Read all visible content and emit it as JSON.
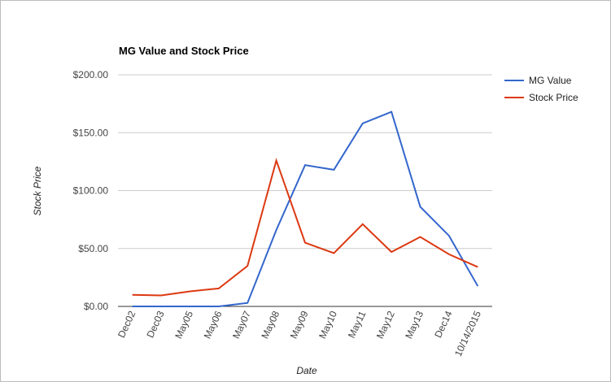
{
  "chart_data": {
    "type": "line",
    "title": "MG Value and Stock Price",
    "x_label": "Date",
    "y_label": "Stock Price",
    "categories": [
      "Dec02",
      "Dec03",
      "May05",
      "May06",
      "May07",
      "May08",
      "May09",
      "May10",
      "May11",
      "May12",
      "May13",
      "Dec14",
      "10/14/2015"
    ],
    "series": [
      {
        "name": "MG Value",
        "color": "#3366cc",
        "values": [
          0,
          0,
          0,
          0,
          3,
          66,
          122,
          118,
          158,
          168,
          86,
          61,
          17.5
        ]
      },
      {
        "name": "Stock Price",
        "color": "#dc3912",
        "values": [
          10,
          9.5,
          13,
          15.5,
          35,
          126,
          55,
          46,
          71,
          47,
          60,
          45,
          34
        ]
      }
    ],
    "ylim": [
      0,
      200
    ],
    "yticks": [
      {
        "value": 0,
        "label": "$0.00"
      },
      {
        "value": 50,
        "label": "$50.00"
      },
      {
        "value": 100,
        "label": "$100.00"
      },
      {
        "value": 150,
        "label": "$150.00"
      },
      {
        "value": 200,
        "label": "$200.00"
      }
    ],
    "grid": true,
    "legend": "right"
  }
}
